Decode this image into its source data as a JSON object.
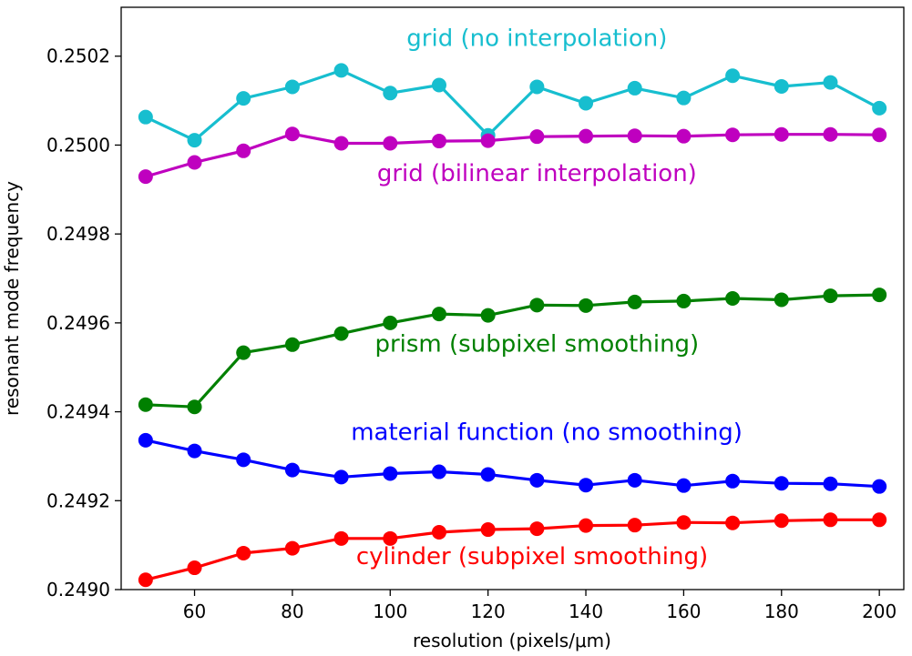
{
  "chart_data": {
    "type": "line",
    "title": "",
    "xlabel": "resolution (pixels/μm)",
    "ylabel": "resonant mode frequency",
    "xlim": [
      45,
      205
    ],
    "ylim": [
      0.249,
      0.25031
    ],
    "xticks": [
      60,
      80,
      100,
      120,
      140,
      160,
      180,
      200
    ],
    "yticks": [
      0.249,
      0.2492,
      0.2494,
      0.2496,
      0.2498,
      0.25,
      0.2502
    ],
    "x": [
      50,
      60,
      70,
      80,
      90,
      100,
      110,
      120,
      130,
      140,
      150,
      160,
      170,
      180,
      190,
      200
    ],
    "grid": false,
    "legend": "inline labels",
    "series": [
      {
        "name": "grid (no interpolation)",
        "color": "#17becf",
        "label_x": 130,
        "label_y": 0.250223,
        "values": [
          0.250063,
          0.250011,
          0.250105,
          0.250131,
          0.250168,
          0.250117,
          0.250135,
          0.250022,
          0.250131,
          0.250094,
          0.250128,
          0.250106,
          0.250156,
          0.250132,
          0.250141,
          0.250083
        ]
      },
      {
        "name": "grid (bilinear interpolation)",
        "color": "#bf00bf",
        "label_x": 130,
        "label_y": 0.249919,
        "values": [
          0.249929,
          0.249961,
          0.249987,
          0.250025,
          0.250004,
          0.250004,
          0.250009,
          0.25001,
          0.250019,
          0.25002,
          0.250021,
          0.25002,
          0.250023,
          0.250024,
          0.250024,
          0.250023
        ]
      },
      {
        "name": "prism (subpixel smoothing)",
        "color": "#008000",
        "label_x": 130,
        "label_y": 0.249535,
        "values": [
          0.249416,
          0.249411,
          0.249533,
          0.249551,
          0.249576,
          0.2496,
          0.24962,
          0.249617,
          0.24964,
          0.249639,
          0.249647,
          0.249649,
          0.249655,
          0.249652,
          0.249661,
          0.249663
        ]
      },
      {
        "name": "material function (no smoothing)",
        "color": "#0000ff",
        "label_x": 132,
        "label_y": 0.249337,
        "values": [
          0.249336,
          0.249312,
          0.249292,
          0.249269,
          0.249253,
          0.249261,
          0.249265,
          0.249259,
          0.249246,
          0.249235,
          0.249246,
          0.249234,
          0.249244,
          0.249239,
          0.249238,
          0.249232
        ]
      },
      {
        "name": "cylinder (subpixel smoothing)",
        "color": "#ff0000",
        "label_x": 129,
        "label_y": 0.249057,
        "values": [
          0.249022,
          0.249049,
          0.249082,
          0.249093,
          0.249115,
          0.249115,
          0.249129,
          0.249135,
          0.249137,
          0.249144,
          0.249145,
          0.249151,
          0.24915,
          0.249155,
          0.249157,
          0.249157
        ]
      }
    ]
  }
}
